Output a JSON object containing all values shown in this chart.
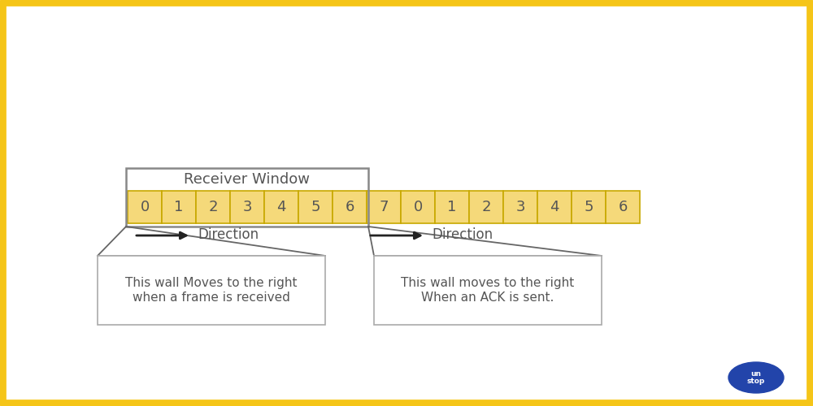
{
  "background_color": "#ffffff",
  "border_color": "#f5c518",
  "border_linewidth": 7,
  "cell_labels": [
    "0",
    "1",
    "2",
    "3",
    "4",
    "5",
    "6",
    "7",
    "0",
    "1",
    "2",
    "3",
    "4",
    "5",
    "6"
  ],
  "cell_fill_color": "#f5d97a",
  "cell_edge_color": "#c8a800",
  "window_box_color": "#888888",
  "window_label": "Receiver Window",
  "window_cells": 7,
  "total_cells": 15,
  "text_color": "#555555",
  "font_size_cells": 13,
  "font_size_label": 13,
  "font_size_box": 11,
  "font_size_direction": 12,
  "box1_text": "This wall Moves to the right\nwhen a frame is received",
  "box2_text": "This wall moves to the right\nWhen an ACK is sent.",
  "box_edge_color": "#aaaaaa",
  "box_fill_color": "#ffffff",
  "unstop_color": "#2244aa",
  "arrow_color": "#222222"
}
